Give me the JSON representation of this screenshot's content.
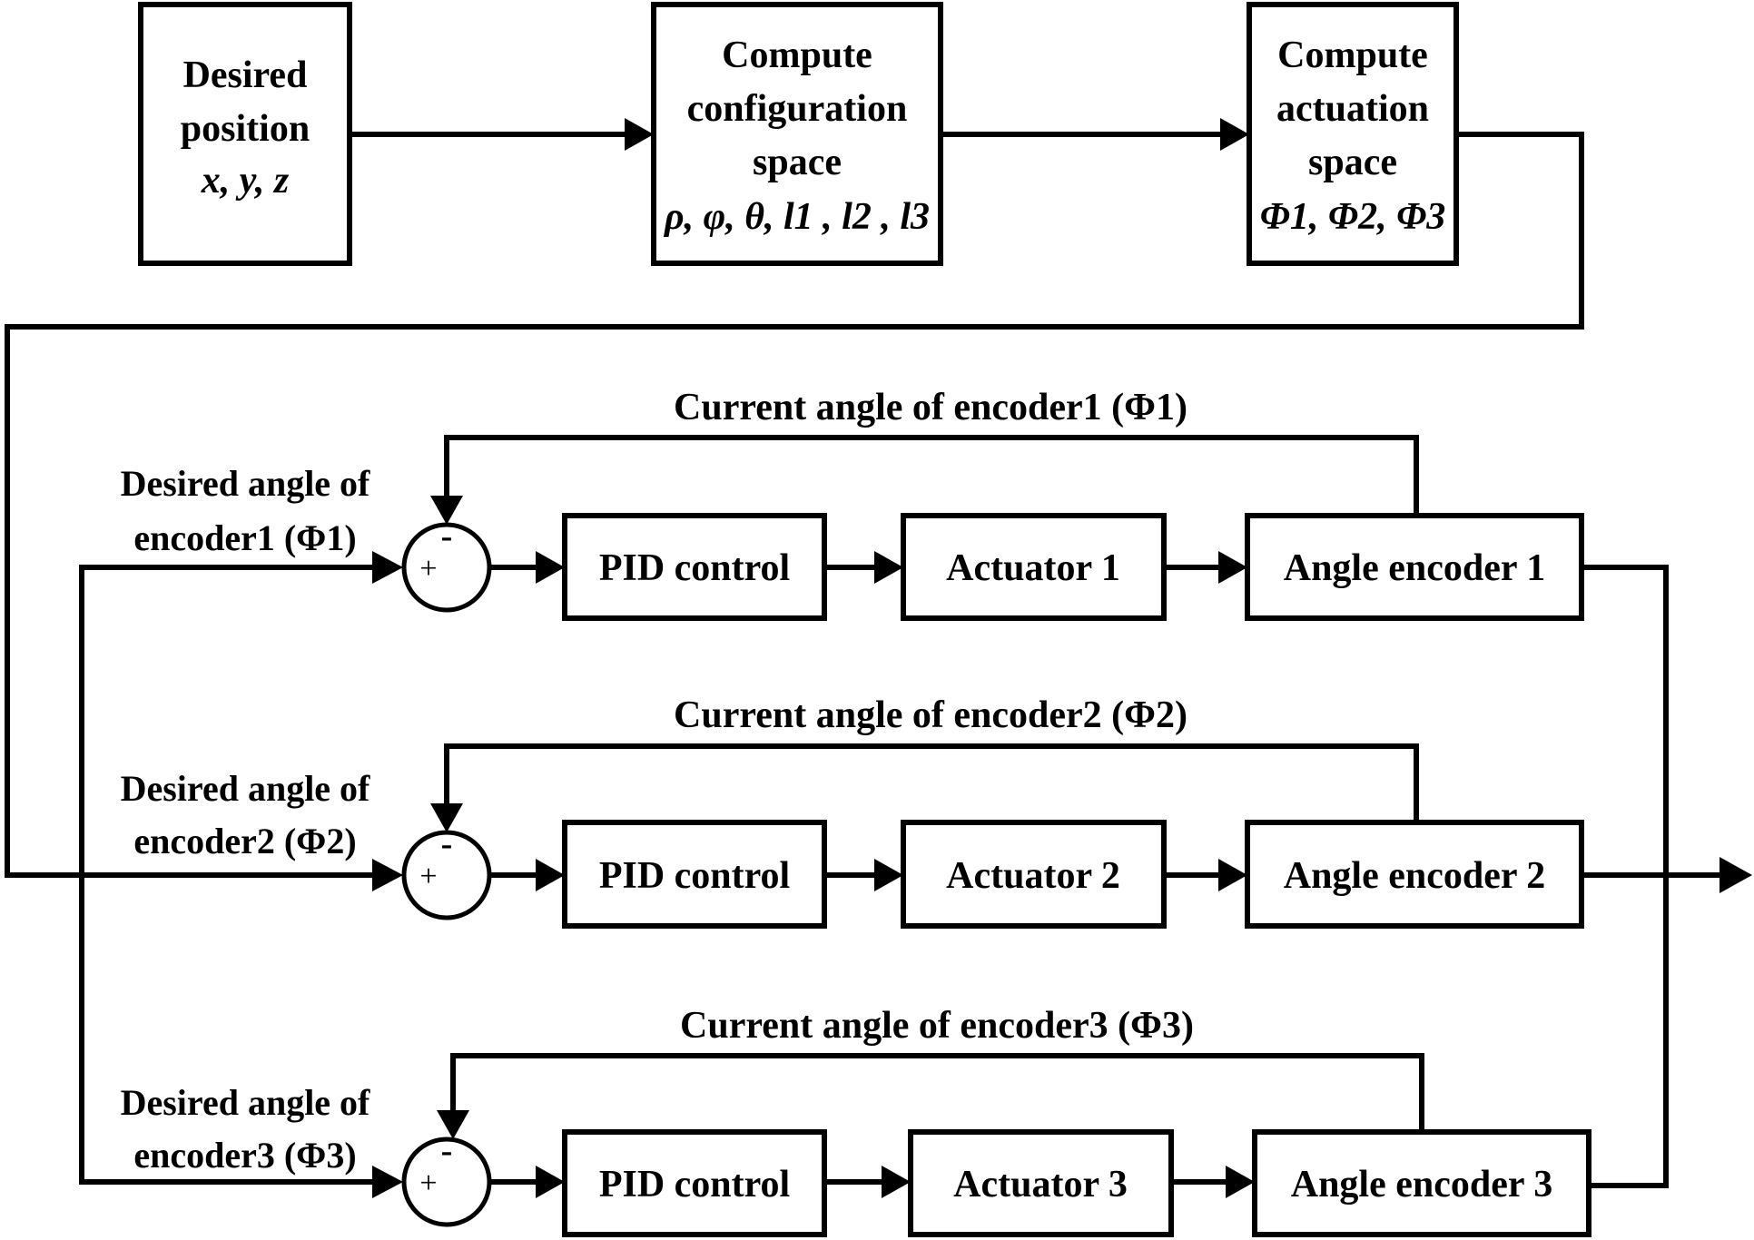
{
  "blocks": {
    "desired_position": {
      "line1": "Desired",
      "line2": "position",
      "vars": "x, y, z"
    },
    "config_space": {
      "line1": "Compute",
      "line2": "configuration",
      "line3": "space",
      "vars": "ρ, φ, θ, l1 , l2 , l3"
    },
    "actuation_space": {
      "line1": "Compute",
      "line2": "actuation",
      "line3": "space",
      "vars": "Φ1, Φ2, Φ3"
    }
  },
  "loops": [
    {
      "desired_label_1": "Desired angle of",
      "desired_label_2": "encoder1 (Φ1)",
      "feedback_label": "Current angle of encoder1  (Φ1)",
      "pid": "PID control",
      "actuator": "Actuator 1",
      "encoder": "Angle encoder 1",
      "sign_minus": "-",
      "sign_plus": "+"
    },
    {
      "desired_label_1": "Desired angle of",
      "desired_label_2": "encoder2 (Φ2)",
      "feedback_label": "Current angle of encoder2  (Φ2)",
      "pid": "PID control",
      "actuator": "Actuator 2",
      "encoder": "Angle encoder 2",
      "sign_minus": "-",
      "sign_plus": "+"
    },
    {
      "desired_label_1": "Desired angle of",
      "desired_label_2": "encoder3 (Φ3)",
      "feedback_label": "Current angle of encoder3  (Φ3)",
      "pid": "PID control",
      "actuator": "Actuator 3",
      "encoder": "Angle encoder 3",
      "sign_minus": "-",
      "sign_plus": "+"
    }
  ]
}
